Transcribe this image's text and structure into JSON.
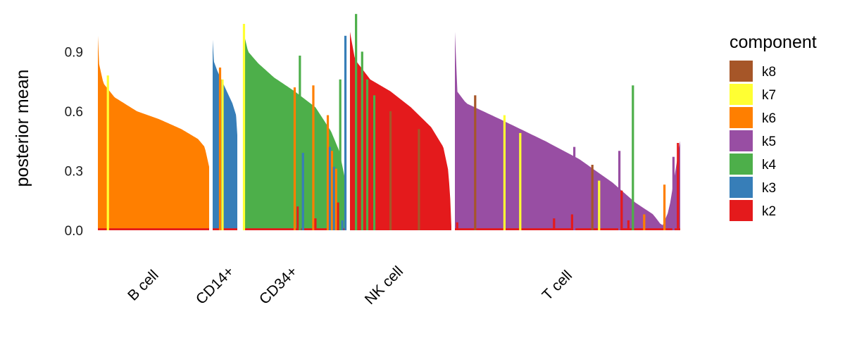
{
  "chart_data": {
    "type": "bar",
    "subtype": "structure-plot (stacked, facetted by cell type)",
    "ylabel": "posterior mean",
    "ylim": [
      0,
      1.1
    ],
    "yticks": [
      0.0,
      0.3,
      0.6,
      0.9
    ],
    "ytick_labels": [
      "0.0",
      "0.3",
      "0.6",
      "0.9"
    ],
    "grid": false,
    "legend": {
      "title": "component",
      "position": "right",
      "entries": [
        {
          "name": "k8",
          "color": "#A65628"
        },
        {
          "name": "k7",
          "color": "#FFFF33"
        },
        {
          "name": "k6",
          "color": "#FF7F00"
        },
        {
          "name": "k5",
          "color": "#984EA3"
        },
        {
          "name": "k4",
          "color": "#4DAF4A"
        },
        {
          "name": "k3",
          "color": "#377EB8"
        },
        {
          "name": "k2",
          "color": "#E41A1C"
        }
      ]
    },
    "groups": [
      {
        "name": "B cell",
        "dominant": "k6",
        "profile": [
          [
            0.0,
            0.98
          ],
          [
            0.01,
            0.84
          ],
          [
            0.05,
            0.74
          ],
          [
            0.15,
            0.67
          ],
          [
            0.35,
            0.6
          ],
          [
            0.55,
            0.56
          ],
          [
            0.75,
            0.51
          ],
          [
            0.9,
            0.46
          ],
          [
            0.96,
            0.42
          ],
          [
            1.0,
            0.32
          ]
        ],
        "baseline": {
          "component": "k2",
          "value": 0.01
        }
      },
      {
        "name": "CD14+",
        "dominant": "k3",
        "profile": [
          [
            0.0,
            0.96
          ],
          [
            0.05,
            0.85
          ],
          [
            0.2,
            0.8
          ],
          [
            0.5,
            0.72
          ],
          [
            0.8,
            0.64
          ],
          [
            0.95,
            0.58
          ],
          [
            1.0,
            0.48
          ]
        ],
        "baseline": {
          "component": "k2",
          "value": 0.01
        }
      },
      {
        "name": "CD34+",
        "dominant": "k4",
        "profile": [
          [
            0.0,
            1.01
          ],
          [
            0.05,
            0.9
          ],
          [
            0.15,
            0.84
          ],
          [
            0.3,
            0.77
          ],
          [
            0.5,
            0.7
          ],
          [
            0.7,
            0.62
          ],
          [
            0.85,
            0.5
          ],
          [
            0.93,
            0.4
          ],
          [
            0.97,
            0.3
          ],
          [
            1.0,
            0.22
          ]
        ],
        "baseline": {
          "component": "k2",
          "value": 0.01
        }
      },
      {
        "name": "NK cell",
        "dominant": "k2",
        "profile": [
          [
            0.0,
            1.0
          ],
          [
            0.05,
            0.86
          ],
          [
            0.2,
            0.76
          ],
          [
            0.4,
            0.7
          ],
          [
            0.6,
            0.62
          ],
          [
            0.8,
            0.52
          ],
          [
            0.92,
            0.42
          ],
          [
            0.97,
            0.3
          ],
          [
            0.99,
            0.15
          ],
          [
            1.0,
            0.02
          ]
        ],
        "baseline": {
          "component": "k2",
          "value": 0.0
        }
      },
      {
        "name": "T cell",
        "dominant": "k5",
        "profile": [
          [
            0.0,
            1.0
          ],
          [
            0.01,
            0.7
          ],
          [
            0.05,
            0.64
          ],
          [
            0.2,
            0.56
          ],
          [
            0.4,
            0.45
          ],
          [
            0.55,
            0.36
          ],
          [
            0.7,
            0.24
          ],
          [
            0.8,
            0.14
          ],
          [
            0.88,
            0.08
          ],
          [
            0.92,
            0.02
          ],
          [
            0.95,
            0.1
          ],
          [
            1.0,
            0.45
          ]
        ],
        "baseline": {
          "component": "k2",
          "value": 0.01
        }
      }
    ],
    "spikes": [
      {
        "group": "B cell",
        "x": 0.09,
        "component": "k7",
        "value": 0.78
      },
      {
        "group": "CD14+",
        "x": 0.3,
        "component": "k6",
        "value": 0.82
      },
      {
        "group": "CD14+",
        "x": 0.4,
        "component": "k7",
        "value": 0.76
      },
      {
        "group": "CD34+",
        "x": 0.01,
        "component": "k7",
        "value": 1.04
      },
      {
        "group": "CD34+",
        "x": 0.5,
        "component": "k6",
        "value": 0.72
      },
      {
        "group": "CD34+",
        "x": 0.53,
        "component": "k2",
        "value": 0.12
      },
      {
        "group": "CD34+",
        "x": 0.55,
        "component": "k4",
        "value": 0.88
      },
      {
        "group": "CD34+",
        "x": 0.58,
        "component": "k3",
        "value": 0.39
      },
      {
        "group": "CD34+",
        "x": 0.68,
        "component": "k6",
        "value": 0.73
      },
      {
        "group": "CD34+",
        "x": 0.7,
        "component": "k2",
        "value": 0.06
      },
      {
        "group": "CD34+",
        "x": 0.82,
        "component": "k6",
        "value": 0.58
      },
      {
        "group": "CD34+",
        "x": 0.84,
        "component": "k3",
        "value": 0.42
      },
      {
        "group": "CD34+",
        "x": 0.86,
        "component": "k6",
        "value": 0.4
      },
      {
        "group": "CD34+",
        "x": 0.88,
        "component": "k3",
        "value": 0.32
      },
      {
        "group": "CD34+",
        "x": 0.9,
        "component": "k6",
        "value": 0.31
      },
      {
        "group": "CD34+",
        "x": 0.92,
        "component": "k2",
        "value": 0.14
      },
      {
        "group": "CD34+",
        "x": 0.94,
        "component": "k4",
        "value": 0.76
      },
      {
        "group": "CD34+",
        "x": 0.96,
        "component": "k3",
        "value": 0.05
      },
      {
        "group": "CD34+",
        "x": 0.99,
        "component": "k3",
        "value": 0.98
      },
      {
        "group": "NK cell",
        "x": 0.06,
        "component": "k4",
        "value": 1.09
      },
      {
        "group": "NK cell",
        "x": 0.12,
        "component": "k4",
        "value": 0.9
      },
      {
        "group": "NK cell",
        "x": 0.17,
        "component": "k4",
        "value": 0.76
      },
      {
        "group": "NK cell",
        "x": 0.24,
        "component": "k4",
        "value": 0.68
      },
      {
        "group": "NK cell",
        "x": 0.4,
        "component": "k8",
        "value": 0.6
      },
      {
        "group": "NK cell",
        "x": 0.68,
        "component": "k8",
        "value": 0.51
      },
      {
        "group": "T cell",
        "x": 0.01,
        "component": "k2",
        "value": 0.04
      },
      {
        "group": "T cell",
        "x": 0.09,
        "component": "k8",
        "value": 0.68
      },
      {
        "group": "T cell",
        "x": 0.22,
        "component": "k7",
        "value": 0.58
      },
      {
        "group": "T cell",
        "x": 0.29,
        "component": "k7",
        "value": 0.49
      },
      {
        "group": "T cell",
        "x": 0.44,
        "component": "k2",
        "value": 0.06
      },
      {
        "group": "T cell",
        "x": 0.52,
        "component": "k2",
        "value": 0.08
      },
      {
        "group": "T cell",
        "x": 0.53,
        "component": "k5",
        "value": 0.42
      },
      {
        "group": "T cell",
        "x": 0.61,
        "component": "k8",
        "value": 0.33
      },
      {
        "group": "T cell",
        "x": 0.64,
        "component": "k7",
        "value": 0.25
      },
      {
        "group": "T cell",
        "x": 0.73,
        "component": "k5",
        "value": 0.4
      },
      {
        "group": "T cell",
        "x": 0.74,
        "component": "k2",
        "value": 0.2
      },
      {
        "group": "T cell",
        "x": 0.77,
        "component": "k2",
        "value": 0.05
      },
      {
        "group": "T cell",
        "x": 0.79,
        "component": "k4",
        "value": 0.73
      },
      {
        "group": "T cell",
        "x": 0.84,
        "component": "k6",
        "value": 0.08
      },
      {
        "group": "T cell",
        "x": 0.93,
        "component": "k6",
        "value": 0.23
      },
      {
        "group": "T cell",
        "x": 0.97,
        "component": "k5",
        "value": 0.37
      },
      {
        "group": "T cell",
        "x": 0.99,
        "component": "k2",
        "value": 0.44
      }
    ]
  }
}
